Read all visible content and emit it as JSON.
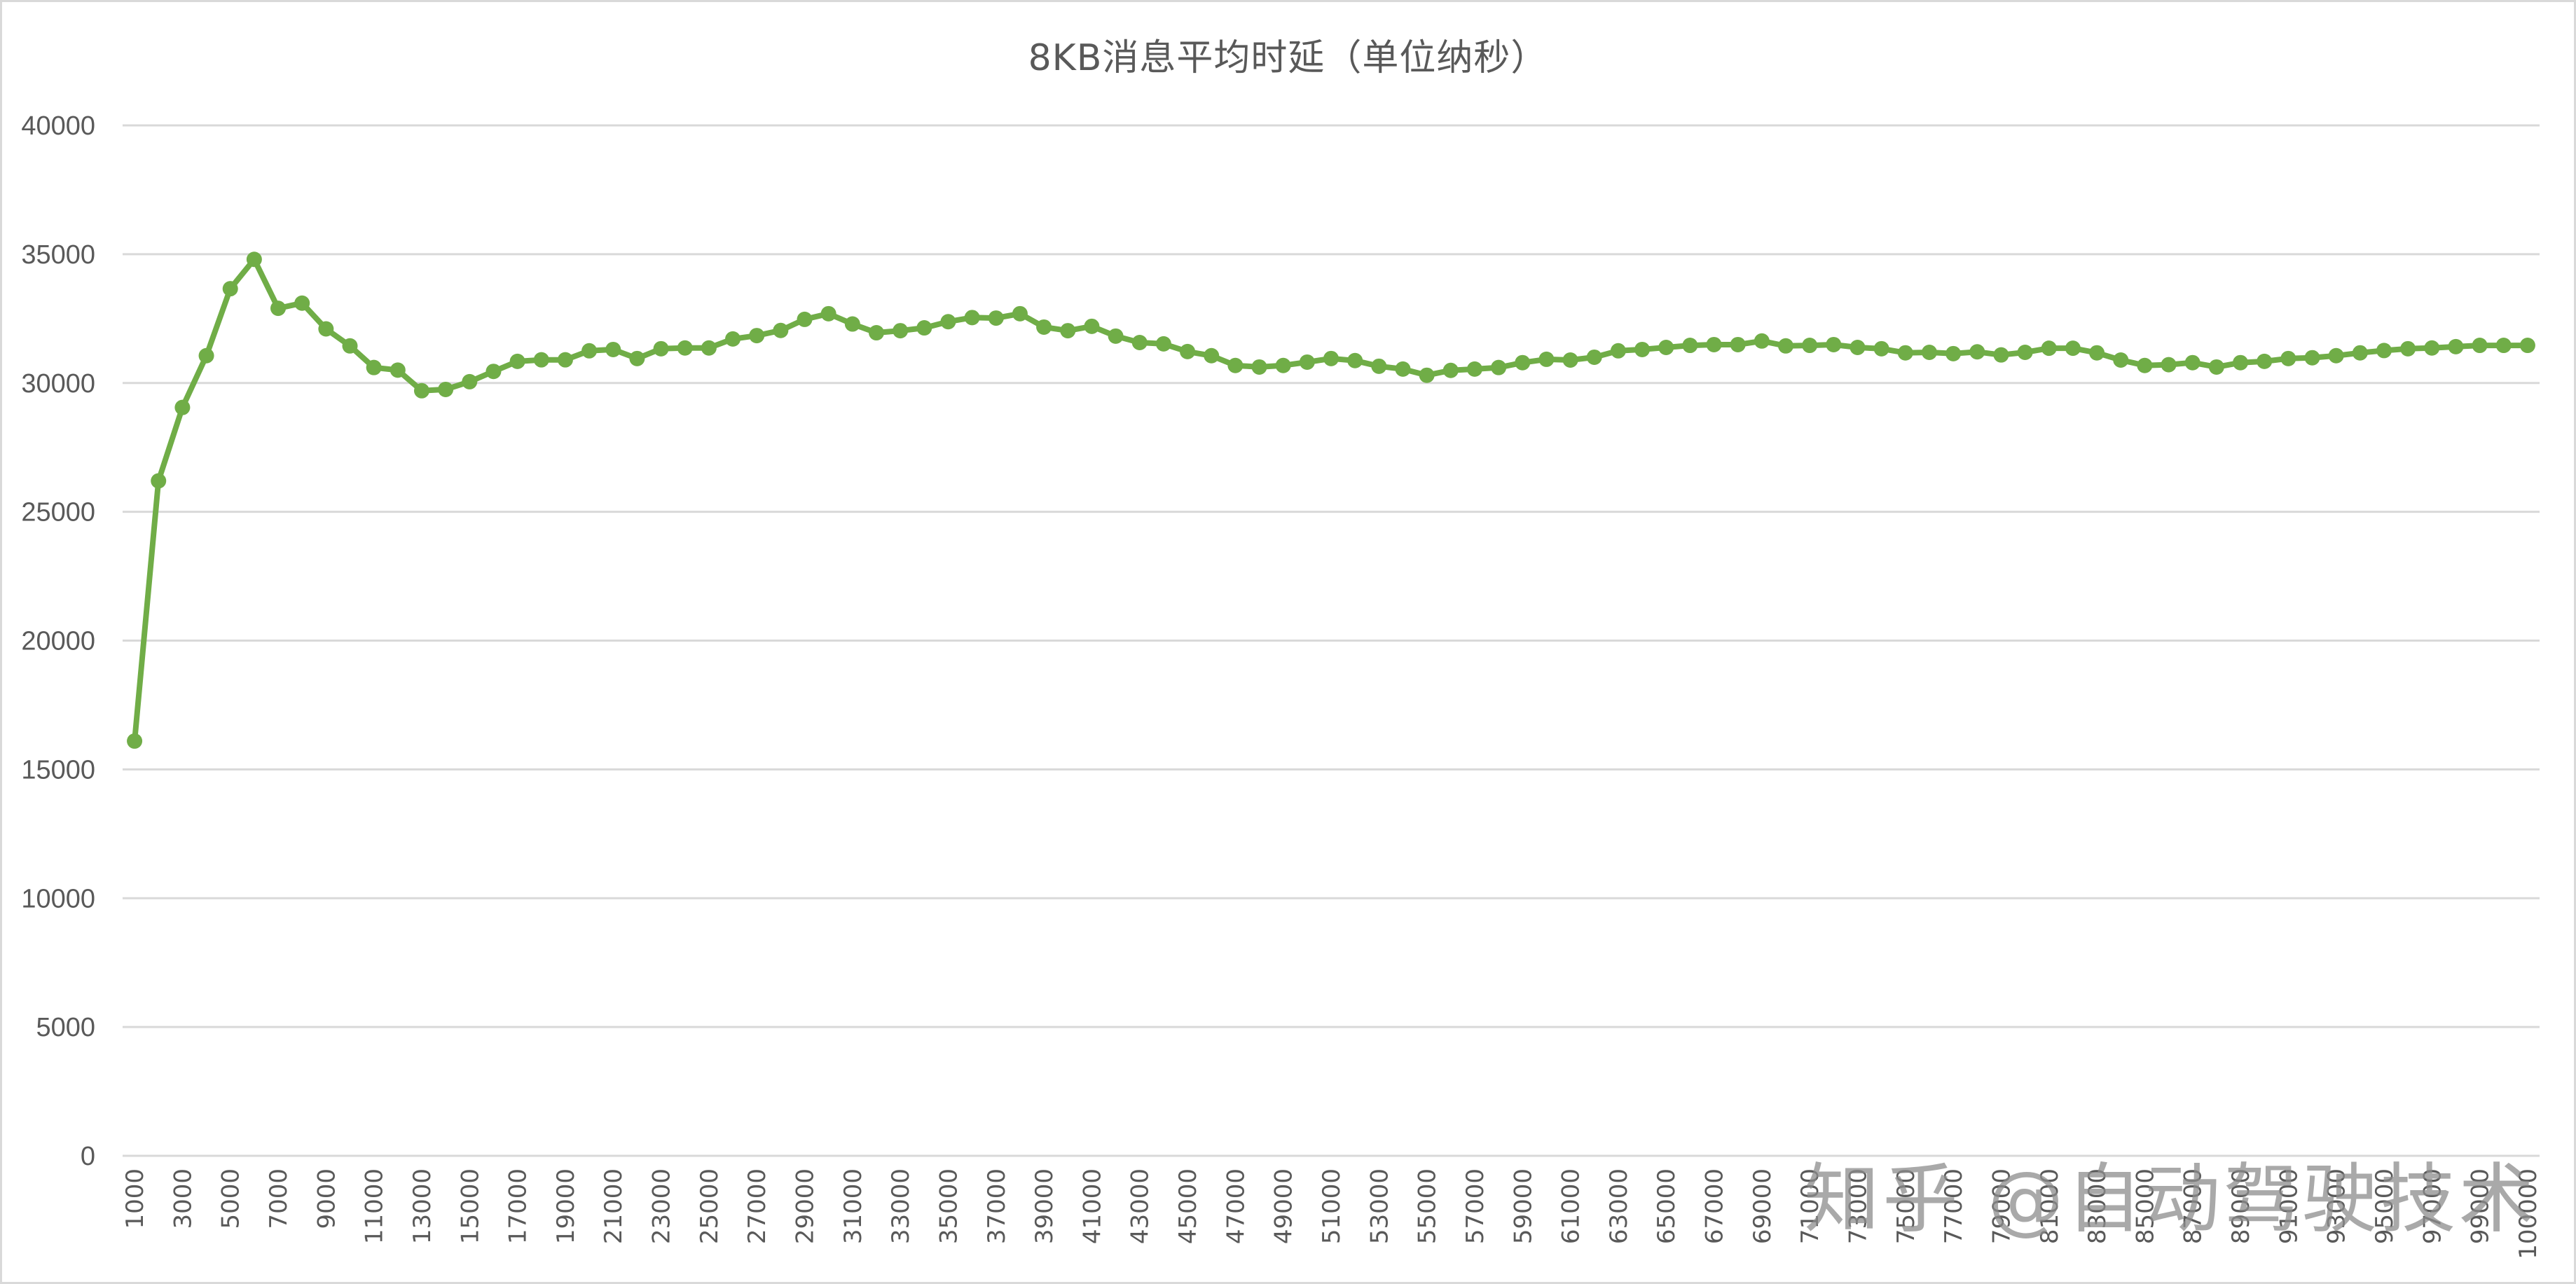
{
  "chart_data": {
    "type": "line",
    "title": "8KB消息平均时延（单位纳秒）",
    "xlabel": "",
    "ylabel": "",
    "ylim": [
      0,
      40000
    ],
    "yticks": [
      0,
      5000,
      10000,
      15000,
      20000,
      25000,
      30000,
      35000,
      40000
    ],
    "grid": true,
    "legend": null,
    "series_color": "#70ad47",
    "categories": [
      "1000",
      "2000",
      "3000",
      "4000",
      "5000",
      "6000",
      "7000",
      "8000",
      "9000",
      "10000",
      "11000",
      "12000",
      "13000",
      "14000",
      "15000",
      "16000",
      "17000",
      "18000",
      "19000",
      "20000",
      "21000",
      "22000",
      "23000",
      "24000",
      "25000",
      "26000",
      "27000",
      "28000",
      "29000",
      "30000",
      "31000",
      "32000",
      "33000",
      "34000",
      "35000",
      "36000",
      "37000",
      "38000",
      "39000",
      "40000",
      "41000",
      "42000",
      "43000",
      "44000",
      "45000",
      "46000",
      "47000",
      "48000",
      "49000",
      "50000",
      "51000",
      "52000",
      "53000",
      "54000",
      "55000",
      "56000",
      "57000",
      "58000",
      "59000",
      "60000",
      "61000",
      "62000",
      "63000",
      "64000",
      "65000",
      "66000",
      "67000",
      "68000",
      "69000",
      "70000",
      "71000",
      "72000",
      "73000",
      "74000",
      "75000",
      "76000",
      "77000",
      "78000",
      "79000",
      "80000",
      "81000",
      "82000",
      "83000",
      "84000",
      "85000",
      "86000",
      "87000",
      "88000",
      "89000",
      "90000",
      "91000",
      "92000",
      "93000",
      "94000",
      "95000",
      "96000",
      "97000",
      "98000",
      "99000",
      "",
      "100000"
    ],
    "series": [
      {
        "name": "8KB消息平均时延",
        "values": [
          16100,
          26200,
          29050,
          31060,
          33660,
          34800,
          32900,
          33100,
          32100,
          31440,
          30600,
          30500,
          29700,
          29750,
          30050,
          30450,
          30840,
          30900,
          30900,
          31250,
          31300,
          30950,
          31330,
          31360,
          31360,
          31710,
          31840,
          32040,
          32470,
          32690,
          32290,
          31950,
          32030,
          32140,
          32380,
          32540,
          32520,
          32690,
          32170,
          32030,
          32200,
          31820,
          31570,
          31520,
          31220,
          31060,
          30680,
          30620,
          30680,
          30810,
          30950,
          30870,
          30650,
          30540,
          30300,
          30490,
          30540,
          30600,
          30790,
          30920,
          30890,
          31000,
          31250,
          31300,
          31380,
          31460,
          31490,
          31490,
          31630,
          31440,
          31460,
          31490,
          31380,
          31330,
          31170,
          31190,
          31140,
          31210,
          31090,
          31190,
          31350,
          31350,
          31170,
          30890,
          30680,
          30710,
          30790,
          30620,
          30790,
          30840,
          30950,
          30980,
          31060,
          31170,
          31260,
          31330,
          31360,
          31410,
          31460,
          31460,
          31460
        ]
      }
    ],
    "xtick_labels_shown": [
      "1000",
      "3000",
      "5000",
      "7000",
      "9000",
      "11000",
      "13000",
      "15000",
      "17000",
      "19000",
      "21000",
      "23000",
      "25000",
      "27000",
      "29000",
      "31000",
      "33000",
      "35000",
      "37000",
      "39000",
      "41000",
      "43000",
      "45000",
      "47000",
      "49000",
      "51000",
      "53000",
      "55000",
      "57000",
      "59000",
      "61000",
      "63000",
      "65000",
      "67000",
      "69000",
      "71000",
      "73000",
      "75000",
      "77000",
      "79000",
      "81000",
      "83000",
      "85000",
      "87000",
      "89000",
      "91000",
      "93000",
      "95000",
      "97000",
      "99000",
      "100000"
    ]
  },
  "watermark": "知乎 @自动驾驶技术"
}
